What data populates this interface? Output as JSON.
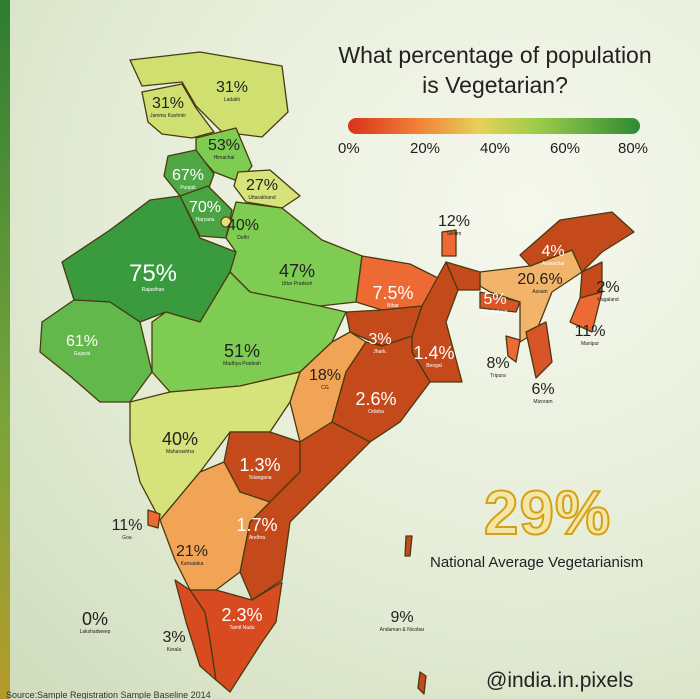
{
  "title": "What percentage of population is Vegetarian?",
  "legend": {
    "ticks": [
      "0%",
      "20%",
      "40%",
      "60%",
      "80%"
    ],
    "colors": [
      "#d8321c",
      "#f07a35",
      "#e8d05a",
      "#9ccc4a",
      "#2e8a35"
    ]
  },
  "national": {
    "value": "29%",
    "label": "National Average Vegetarianism"
  },
  "handle": "@india.in.pixels",
  "source": "Source:Sample Registration Sample Baseline 2014",
  "states": [
    {
      "name": "Ladakh",
      "pct": "31%"
    },
    {
      "name": "Jammu Kashmir",
      "pct": "31%"
    },
    {
      "name": "Himachal",
      "pct": "53%"
    },
    {
      "name": "Punjab",
      "pct": "67%"
    },
    {
      "name": "Uttarakhand",
      "pct": "27%"
    },
    {
      "name": "Haryana",
      "pct": "70%"
    },
    {
      "name": "Delhi",
      "pct": "40%"
    },
    {
      "name": "Rajasthan",
      "pct": "75%"
    },
    {
      "name": "Gujarat",
      "pct": "61%"
    },
    {
      "name": "Uttar Pradesh",
      "pct": "47%"
    },
    {
      "name": "Madhya Pradesh",
      "pct": "51%"
    },
    {
      "name": "Bihar",
      "pct": "7.5%"
    },
    {
      "name": "Jhark.",
      "pct": "3%"
    },
    {
      "name": "Bengal",
      "pct": "1.4%"
    },
    {
      "name": "Sikkim",
      "pct": "12%"
    },
    {
      "name": "CG",
      "pct": "18%"
    },
    {
      "name": "Odisha",
      "pct": "2.6%"
    },
    {
      "name": "Maharashtra",
      "pct": "40%"
    },
    {
      "name": "Telangana",
      "pct": "1.3%"
    },
    {
      "name": "Andhra",
      "pct": "1.7%"
    },
    {
      "name": "Goa",
      "pct": "11%"
    },
    {
      "name": "Karnataka",
      "pct": "21%"
    },
    {
      "name": "Kerala",
      "pct": "3%"
    },
    {
      "name": "Tamil Nadu",
      "pct": "2.3%"
    },
    {
      "name": "Lakshadweep",
      "pct": "0%"
    },
    {
      "name": "Andaman & Nicobar",
      "pct": "9%"
    },
    {
      "name": "Assam",
      "pct": "20.6%"
    },
    {
      "name": "Arunachal",
      "pct": "4%"
    },
    {
      "name": "Nagaland",
      "pct": "2%"
    },
    {
      "name": "Meghalaya",
      "pct": "5%"
    },
    {
      "name": "Manipur",
      "pct": "11%"
    },
    {
      "name": "Tripura",
      "pct": "8%"
    },
    {
      "name": "Mizoram",
      "pct": "6%"
    }
  ]
}
